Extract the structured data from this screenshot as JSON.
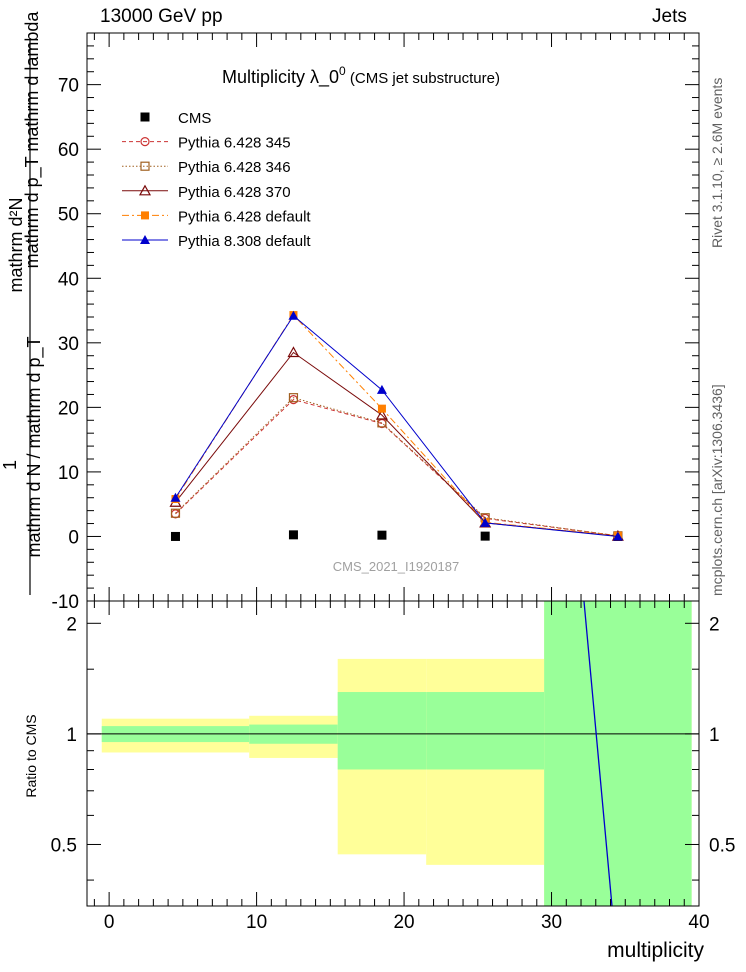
{
  "header": {
    "left": "13000 GeV pp",
    "right": "Jets"
  },
  "side_labels": {
    "rivet": "Rivet 3.1.10, ≥ 2.6M events",
    "mcplots": "mcplots.cern.ch [arXiv:1306.3436]"
  },
  "chart_data": [
    {
      "type": "line",
      "title_main": "Multiplicity  λ_0",
      "title_sup": "0",
      "title_sub": " (CMS jet substructure)",
      "ylabel_top": "mathrm d²N",
      "ylabel_mid": "mathrm d p_T mathrm d lambda",
      "ylabel_one": "1",
      "ylabel_bottom": "mathrm d N / mathrm d p_T",
      "watermark": "CMS_2021_I1920187",
      "xlim": [
        -1.5,
        40
      ],
      "ylim": [
        -10,
        78
      ],
      "yticks": [
        -10,
        0,
        10,
        20,
        30,
        40,
        50,
        60,
        70
      ],
      "x": [
        4.5,
        12.5,
        18.5,
        25.5,
        34.5
      ],
      "series": [
        {
          "name": "CMS",
          "color": "#000000",
          "marker": "filled-square",
          "line": "none",
          "values": [
            0.0,
            0.25,
            0.2,
            0.05,
            0.0
          ]
        },
        {
          "name": "Pythia 6.428 345",
          "color": "#cc3333",
          "marker": "open-circle",
          "line": "dashed",
          "values": [
            3.5,
            21.2,
            17.5,
            2.8,
            0.1
          ]
        },
        {
          "name": "Pythia 6.428 346",
          "color": "#a06020",
          "marker": "open-square",
          "line": "dotted",
          "values": [
            3.6,
            21.5,
            17.6,
            2.9,
            0.1
          ]
        },
        {
          "name": "Pythia 6.428 370",
          "color": "#7a0a0a",
          "marker": "open-triangle",
          "line": "solid",
          "values": [
            5.3,
            28.5,
            18.8,
            2.1,
            0.05
          ]
        },
        {
          "name": "Pythia 6.428 default",
          "color": "#ff7f00",
          "marker": "filled-square",
          "line": "dashdot",
          "values": [
            5.8,
            34.3,
            19.8,
            2.2,
            0.1
          ]
        },
        {
          "name": "Pythia 8.308 default",
          "color": "#0000cc",
          "marker": "filled-triangle",
          "line": "solid",
          "values": [
            6.0,
            34.2,
            22.7,
            2.1,
            0.0
          ]
        }
      ]
    },
    {
      "type": "area",
      "ylabel": "Ratio to CMS",
      "xlabel": "multiplicity",
      "xlim": [
        -1.5,
        40
      ],
      "ylim": [
        0.34,
        2.3
      ],
      "xticks": [
        0,
        10,
        20,
        30,
        40
      ],
      "yticks": [
        0.5,
        1,
        2
      ],
      "reference": 1,
      "bands": [
        {
          "x": [
            -0.5,
            9.5
          ],
          "green": [
            0.95,
            1.05
          ],
          "yellow": [
            0.89,
            1.1
          ]
        },
        {
          "x": [
            9.5,
            15.5
          ],
          "green": [
            0.94,
            1.06
          ],
          "yellow": [
            0.86,
            1.12
          ]
        },
        {
          "x": [
            15.5,
            21.5
          ],
          "green": [
            0.8,
            1.3
          ],
          "yellow": [
            0.47,
            1.6
          ]
        },
        {
          "x": [
            21.5,
            29.5
          ],
          "green": [
            0.8,
            1.3
          ],
          "yellow": [
            0.44,
            1.6
          ]
        },
        {
          "x": [
            29.5,
            39.5
          ],
          "green": [
            0.34,
            2.3
          ],
          "yellow": [
            0.34,
            2.3
          ]
        }
      ],
      "ratio_line": {
        "x": [
          32.2,
          34.1
        ],
        "y": [
          2.3,
          0.34
        ],
        "color": "#0000cc"
      }
    }
  ]
}
